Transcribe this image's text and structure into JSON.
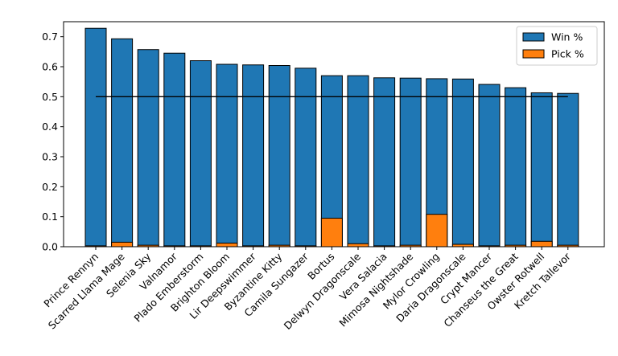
{
  "chart_data": {
    "type": "bar",
    "categories": [
      "Prince Rennyn",
      "Scarred Llama Mage",
      "Selenia Sky",
      "Valnamor",
      "Plado Emberstorm",
      "Brighton Bloom",
      "Lir Deepswimmer",
      "Byzantine Kitty",
      "Camila Sungazer",
      "Bortus",
      "Delwyn Dragonscale",
      "Vera Salacia",
      "Mimosa Nightshade",
      "Mylor Crowling",
      "Daria Dragonscale",
      "Crypt Mancer",
      "Chanseus the Great",
      "Owster Rotwell",
      "Kretch Tallevor"
    ],
    "series": [
      {
        "name": "Win %",
        "color": "#1f77b4",
        "values": [
          0.728,
          0.693,
          0.657,
          0.645,
          0.62,
          0.608,
          0.606,
          0.604,
          0.595,
          0.57,
          0.57,
          0.563,
          0.562,
          0.56,
          0.559,
          0.541,
          0.53,
          0.513,
          0.511
        ]
      },
      {
        "name": "Pick %",
        "color": "#ff7f0e",
        "values": [
          0.003,
          0.015,
          0.005,
          0.003,
          0.003,
          0.012,
          0.003,
          0.005,
          0.003,
          0.095,
          0.01,
          0.003,
          0.005,
          0.108,
          0.008,
          0.003,
          0.005,
          0.018,
          0.005
        ]
      }
    ],
    "reference_line": {
      "value": 0.5,
      "color": "#000000"
    },
    "ylim": [
      0,
      0.75
    ],
    "yticks": [
      "0.0",
      "0.1",
      "0.2",
      "0.3",
      "0.4",
      "0.5",
      "0.6",
      "0.7"
    ],
    "ytick_values": [
      0,
      0.1,
      0.2,
      0.3,
      0.4,
      0.5,
      0.6,
      0.7
    ],
    "title": "",
    "xlabel": "",
    "ylabel": "",
    "legend_position": "top-right",
    "grid": false
  }
}
